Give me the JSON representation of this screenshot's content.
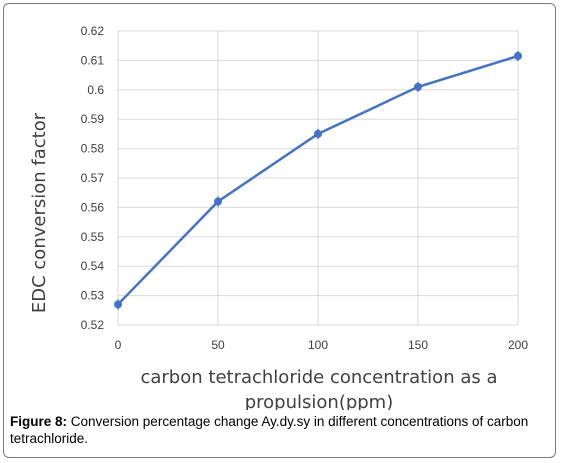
{
  "chart_data": {
    "type": "line",
    "x": [
      0,
      50,
      100,
      150,
      200
    ],
    "y": [
      0.527,
      0.562,
      0.585,
      0.601,
      0.6115
    ],
    "xlim": [
      0,
      200
    ],
    "ylim": [
      0.52,
      0.62
    ],
    "x_ticks": [
      "0",
      "50",
      "100",
      "150",
      "200"
    ],
    "y_ticks": [
      "0.52",
      "0.53",
      "0.54",
      "0.55",
      "0.56",
      "0.57",
      "0.58",
      "0.59",
      "0.6",
      "0.61",
      "0.62"
    ],
    "xlabel_line1": "carbon tetrachloride concentration as a",
    "xlabel_line2": "propulsion(ppm)",
    "ylabel": "EDC conversion factor",
    "grid": true,
    "line_color": "#4472c4",
    "grid_color": "#d9d9d9"
  },
  "caption": {
    "label": "Figure 8:",
    "text": " Conversion percentage change Ay.dy.sy in different concentrations of carbon tetrachloride."
  }
}
